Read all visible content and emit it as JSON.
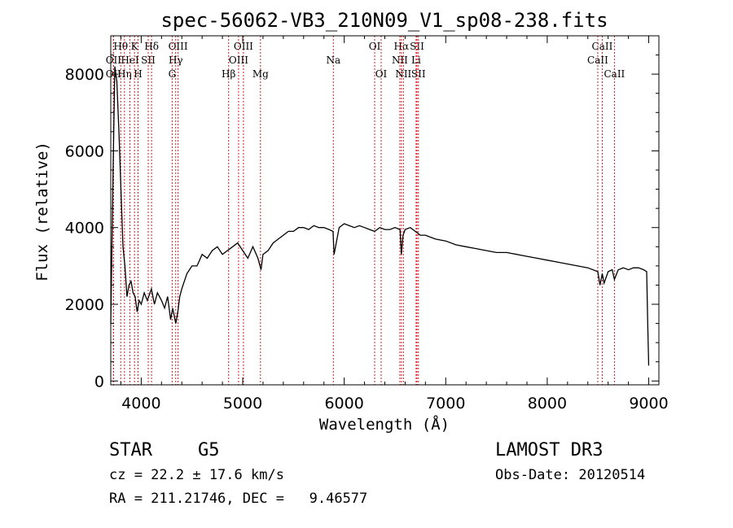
{
  "chart_data": {
    "type": "line",
    "title": "spec-56062-VB3_210N09_V1_sp08-238.fits",
    "xlabel": "Wavelength (Å)",
    "ylabel": "Flux (relative)",
    "xlim": [
      3700,
      9100
    ],
    "ylim": [
      -100,
      9000
    ],
    "xticks": [
      4000,
      5000,
      6000,
      7000,
      8000,
      9000
    ],
    "yticks": [
      0,
      2000,
      4000,
      6000,
      8000
    ],
    "series": [
      {
        "name": "flux",
        "x": [
          3700,
          3720,
          3740,
          3760,
          3780,
          3800,
          3820,
          3840,
          3860,
          3880,
          3900,
          3920,
          3940,
          3960,
          3980,
          4000,
          4030,
          4060,
          4100,
          4130,
          4160,
          4200,
          4230,
          4260,
          4290,
          4310,
          4340,
          4360,
          4380,
          4400,
          4450,
          4500,
          4550,
          4600,
          4650,
          4700,
          4750,
          4800,
          4850,
          4900,
          4950,
          5000,
          5050,
          5100,
          5150,
          5180,
          5200,
          5250,
          5300,
          5350,
          5400,
          5450,
          5500,
          5550,
          5600,
          5650,
          5700,
          5750,
          5800,
          5850,
          5890,
          5900,
          5950,
          6000,
          6050,
          6100,
          6150,
          6200,
          6250,
          6300,
          6350,
          6400,
          6450,
          6500,
          6550,
          6563,
          6580,
          6600,
          6650,
          6700,
          6750,
          6800,
          6900,
          7000,
          7100,
          7200,
          7300,
          7400,
          7500,
          7600,
          7700,
          7800,
          7900,
          8000,
          8100,
          8200,
          8300,
          8400,
          8498,
          8520,
          8542,
          8560,
          8600,
          8640,
          8662,
          8700,
          8750,
          8800,
          8850,
          8900,
          8950,
          8980,
          8990,
          9000
        ],
        "y": [
          1500,
          5000,
          8200,
          7800,
          6500,
          5000,
          3500,
          3000,
          2200,
          2500,
          2600,
          2300,
          2200,
          1800,
          2100,
          2000,
          2300,
          2100,
          2400,
          2000,
          2300,
          2100,
          1900,
          2200,
          1600,
          1900,
          1500,
          1800,
          2200,
          2400,
          2800,
          3000,
          3000,
          3300,
          3200,
          3400,
          3500,
          3300,
          3400,
          3500,
          3600,
          3400,
          3200,
          3500,
          3200,
          2900,
          3300,
          3400,
          3600,
          3700,
          3800,
          3900,
          3900,
          4000,
          4000,
          3950,
          4050,
          4000,
          4000,
          3950,
          3900,
          3300,
          4000,
          4100,
          4050,
          4000,
          4050,
          4000,
          3950,
          3900,
          4000,
          3950,
          3950,
          4000,
          3950,
          3300,
          3800,
          3950,
          4000,
          3900,
          3800,
          3800,
          3700,
          3650,
          3550,
          3500,
          3450,
          3400,
          3350,
          3350,
          3300,
          3250,
          3200,
          3150,
          3100,
          3050,
          3000,
          2950,
          2850,
          2500,
          2800,
          2550,
          2850,
          2900,
          2650,
          2900,
          2950,
          2900,
          2950,
          2950,
          2900,
          2850,
          1500,
          400
        ]
      }
    ],
    "lines": [
      {
        "label": "Hθ",
        "x": 3798,
        "row": 0
      },
      {
        "label": "OII",
        "x": 3727,
        "row": 1
      },
      {
        "label": "OII",
        "x": 3727,
        "row": 2
      },
      {
        "label": "Hη",
        "x": 3835,
        "row": 2
      },
      {
        "label": "HeI",
        "x": 3889,
        "row": 1
      },
      {
        "label": "K",
        "x": 3934,
        "row": 0
      },
      {
        "label": "H",
        "x": 3969,
        "row": 2
      },
      {
        "label": "SII",
        "x": 4069,
        "row": 1
      },
      {
        "label": "Hδ",
        "x": 4102,
        "row": 0
      },
      {
        "label": "OIII",
        "x": 4363,
        "row": 0
      },
      {
        "label": "Hγ",
        "x": 4340,
        "row": 1
      },
      {
        "label": "G",
        "x": 4305,
        "row": 2
      },
      {
        "label": "Hβ",
        "x": 4861,
        "row": 2
      },
      {
        "label": "OIII",
        "x": 5007,
        "row": 0
      },
      {
        "label": "OIII",
        "x": 4959,
        "row": 1
      },
      {
        "label": "Mg",
        "x": 5175,
        "row": 2
      },
      {
        "label": "Na",
        "x": 5893,
        "row": 1
      },
      {
        "label": "OI",
        "x": 6300,
        "row": 0
      },
      {
        "label": "OI",
        "x": 6364,
        "row": 2
      },
      {
        "label": "Hα",
        "x": 6563,
        "row": 0
      },
      {
        "label": "NII",
        "x": 6548,
        "row": 1
      },
      {
        "label": "NII",
        "x": 6583,
        "row": 2
      },
      {
        "label": "SII",
        "x": 6717,
        "row": 0
      },
      {
        "label": "Li",
        "x": 6708,
        "row": 1
      },
      {
        "label": "SII",
        "x": 6731,
        "row": 2
      },
      {
        "label": "CaII",
        "x": 8542,
        "row": 0
      },
      {
        "label": "CaII",
        "x": 8498,
        "row": 1
      },
      {
        "label": "CaII",
        "x": 8662,
        "row": 2
      }
    ]
  },
  "info": {
    "class_label": "STAR",
    "subclass": "G5",
    "survey": "LAMOST DR3",
    "cz": "cz = 22.2 ± 17.6 km/s",
    "obs_date": "Obs-Date: 20120514",
    "radec": "RA = 211.21746, DEC =   9.46577"
  },
  "colors": {
    "line_marker": "#cc2222",
    "spectrum": "#000000"
  }
}
